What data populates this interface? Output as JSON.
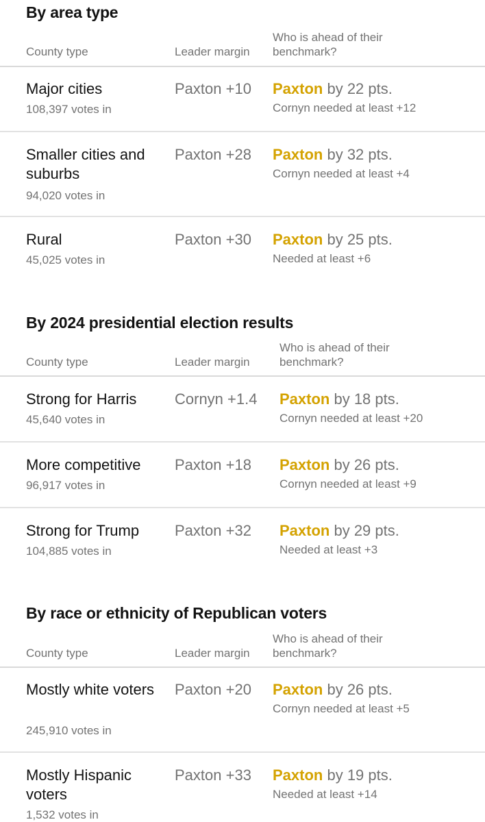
{
  "sections": [
    {
      "title": "By area type",
      "headers": {
        "county_type": "County type",
        "leader_margin": "Leader margin",
        "benchmark_line1": "Who is ahead of their",
        "benchmark_line2": "benchmark?"
      },
      "rows": [
        {
          "name": "Major cities",
          "votes": "108,397 votes in",
          "margin": "Paxton +10",
          "leader": "Paxton",
          "lead": " by 22 pts.",
          "needed": "Cornyn needed at least +12"
        },
        {
          "name": "Smaller cities and suburbs",
          "votes": "94,020 votes in",
          "margin": "Paxton +28",
          "leader": "Paxton",
          "lead": " by 32 pts.",
          "needed": "Cornyn needed at least +4"
        },
        {
          "name": "Rural",
          "votes": "45,025 votes in",
          "margin": "Paxton +30",
          "leader": "Paxton",
          "lead": " by 25 pts.",
          "needed": "Needed at least +6"
        }
      ]
    },
    {
      "title": "By 2024 presidential election results",
      "headers": {
        "county_type": "County type",
        "leader_margin": "Leader margin",
        "benchmark_line1": "Who is ahead of their",
        "benchmark_line2": "benchmark?"
      },
      "rows": [
        {
          "name": "Strong for Harris",
          "votes": "45,640 votes in",
          "margin": "Cornyn +1.4",
          "leader": "Paxton",
          "lead": " by 18 pts.",
          "needed": "Cornyn needed at least +20"
        },
        {
          "name": "More competitive",
          "votes": "96,917 votes in",
          "margin": "Paxton +18",
          "leader": "Paxton",
          "lead": " by 26 pts.",
          "needed": "Cornyn needed at least +9"
        },
        {
          "name": "Strong for Trump",
          "votes": "104,885 votes in",
          "margin": "Paxton +32",
          "leader": "Paxton",
          "lead": " by 29 pts.",
          "needed": "Needed at least +3"
        }
      ]
    },
    {
      "title": "By race or ethnicity of Republican voters",
      "headers": {
        "county_type": "County type",
        "leader_margin": "Leader margin",
        "benchmark_line1": "Who is ahead of their",
        "benchmark_line2": "benchmark?"
      },
      "rows": [
        {
          "name": "Mostly white voters",
          "votes": "245,910 votes in",
          "margin": "Paxton +20",
          "leader": "Paxton",
          "lead": " by 26 pts.",
          "needed": "Cornyn needed at least +5"
        },
        {
          "name": "Mostly Hispanic voters",
          "votes": "1,532 votes in",
          "margin": "Paxton +33",
          "leader": "Paxton",
          "lead": " by 19 pts.",
          "needed": "Needed at least +14"
        }
      ]
    }
  ],
  "colors": {
    "leader_name": "#d4a200",
    "muted_text": "#727272",
    "primary_text": "#121212",
    "divider": "#e2e2e2"
  }
}
